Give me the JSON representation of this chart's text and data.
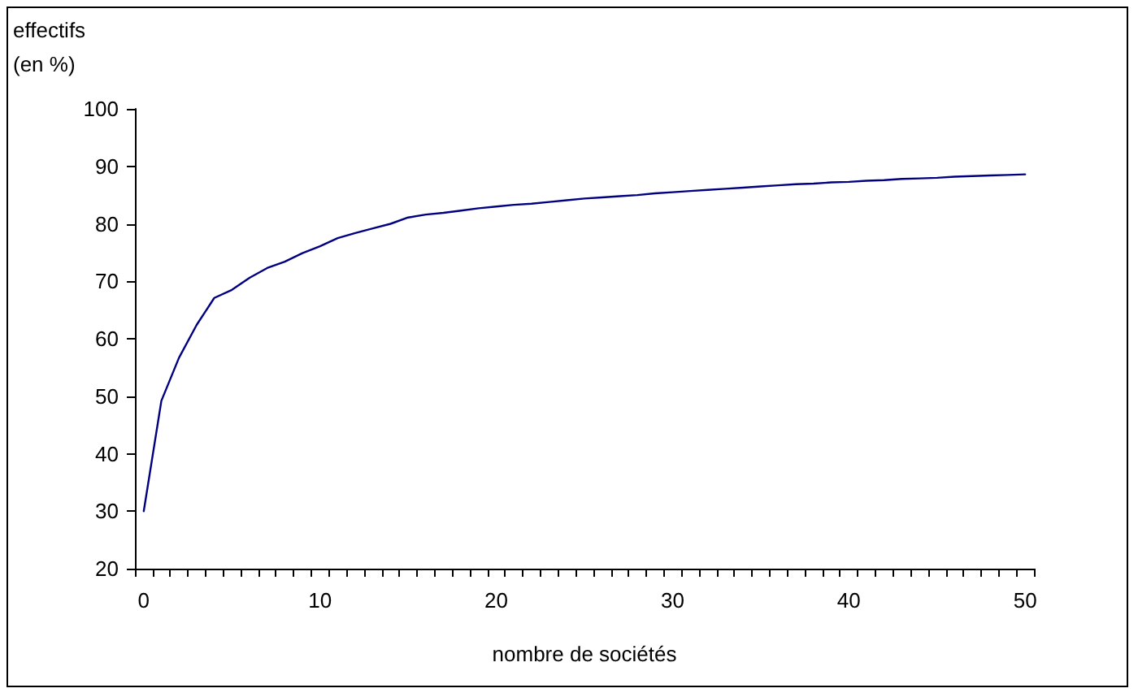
{
  "chart_data": {
    "type": "line",
    "xlabel": "nombre de sociétés",
    "ylabel": "effectifs (en %)",
    "categories": [
      "0",
      null,
      null,
      null,
      null,
      null,
      null,
      null,
      null,
      null,
      "10",
      null,
      null,
      null,
      null,
      null,
      null,
      null,
      null,
      null,
      "20",
      null,
      null,
      null,
      null,
      null,
      null,
      null,
      null,
      null,
      "30",
      null,
      null,
      null,
      null,
      null,
      null,
      null,
      null,
      null,
      "40",
      null,
      null,
      null,
      null,
      null,
      null,
      null,
      null,
      null,
      "50"
    ],
    "values": [
      30,
      49.2,
      56.7,
      62.4,
      67.1,
      68.5,
      70.6,
      72.3,
      73.4,
      74.9,
      76.1,
      77.5,
      78.4,
      79.2,
      80.0,
      81.1,
      81.6,
      81.9,
      82.3,
      82.7,
      83.0,
      83.3,
      83.5,
      83.8,
      84.1,
      84.4,
      84.6,
      84.8,
      85.0,
      85.3,
      85.5,
      85.7,
      85.9,
      86.1,
      86.3,
      86.5,
      86.7,
      86.9,
      87.0,
      87.2,
      87.3,
      87.5,
      87.6,
      87.8,
      87.9,
      88.0,
      88.2,
      88.3,
      88.4,
      88.5,
      88.6
    ],
    "color": "#000080",
    "ylim": [
      20,
      100
    ],
    "yticks": [
      20,
      30,
      40,
      50,
      60,
      70,
      80,
      90,
      100
    ],
    "marker": "none",
    "line_style": "solid"
  }
}
